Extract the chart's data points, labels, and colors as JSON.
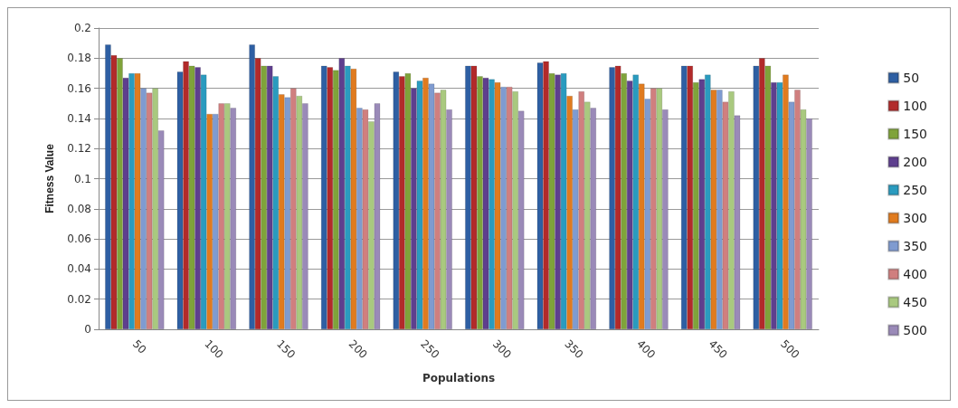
{
  "chart_data": {
    "type": "bar",
    "xlabel": "Populations",
    "ylabel": "Fitness Value",
    "categories": [
      "50",
      "100",
      "150",
      "200",
      "250",
      "300",
      "350",
      "400",
      "450",
      "500"
    ],
    "series": [
      {
        "name": "50",
        "color": "#2e5fa3",
        "values": [
          0.189,
          0.171,
          0.189,
          0.175,
          0.171,
          0.175,
          0.177,
          0.174,
          0.175,
          0.175
        ]
      },
      {
        "name": "100",
        "color": "#b22a2a",
        "values": [
          0.182,
          0.178,
          0.18,
          0.174,
          0.168,
          0.175,
          0.178,
          0.175,
          0.175,
          0.18
        ]
      },
      {
        "name": "150",
        "color": "#7fa33a",
        "values": [
          0.18,
          0.175,
          0.175,
          0.172,
          0.17,
          0.168,
          0.17,
          0.17,
          0.164,
          0.175
        ]
      },
      {
        "name": "200",
        "color": "#5e3f8e",
        "values": [
          0.167,
          0.174,
          0.175,
          0.18,
          0.16,
          0.167,
          0.169,
          0.165,
          0.166,
          0.164
        ]
      },
      {
        "name": "250",
        "color": "#2a9bbf",
        "values": [
          0.17,
          0.169,
          0.168,
          0.175,
          0.165,
          0.166,
          0.17,
          0.169,
          0.169,
          0.164
        ]
      },
      {
        "name": "300",
        "color": "#e07b1f",
        "values": [
          0.17,
          0.143,
          0.156,
          0.173,
          0.167,
          0.164,
          0.155,
          0.163,
          0.159,
          0.169
        ]
      },
      {
        "name": "350",
        "color": "#7f9bd0",
        "values": [
          0.16,
          0.143,
          0.154,
          0.147,
          0.163,
          0.161,
          0.146,
          0.153,
          0.159,
          0.151
        ]
      },
      {
        "name": "400",
        "color": "#d07f7f",
        "values": [
          0.157,
          0.15,
          0.16,
          0.146,
          0.157,
          0.161,
          0.158,
          0.16,
          0.151,
          0.159
        ]
      },
      {
        "name": "450",
        "color": "#a9c97f",
        "values": [
          0.16,
          0.15,
          0.155,
          0.138,
          0.159,
          0.158,
          0.151,
          0.16,
          0.158,
          0.146
        ]
      },
      {
        "name": "500",
        "color": "#9a8ab8",
        "values": [
          0.132,
          0.147,
          0.15,
          0.15,
          0.146,
          0.145,
          0.147,
          0.146,
          0.142,
          0.14
        ]
      }
    ],
    "ylim": [
      0,
      0.2
    ],
    "yticks": [
      0,
      0.02,
      0.04,
      0.06,
      0.08,
      0.1,
      0.12,
      0.14,
      0.16,
      0.18,
      0.2
    ],
    "grid": "y",
    "legend": "right"
  }
}
